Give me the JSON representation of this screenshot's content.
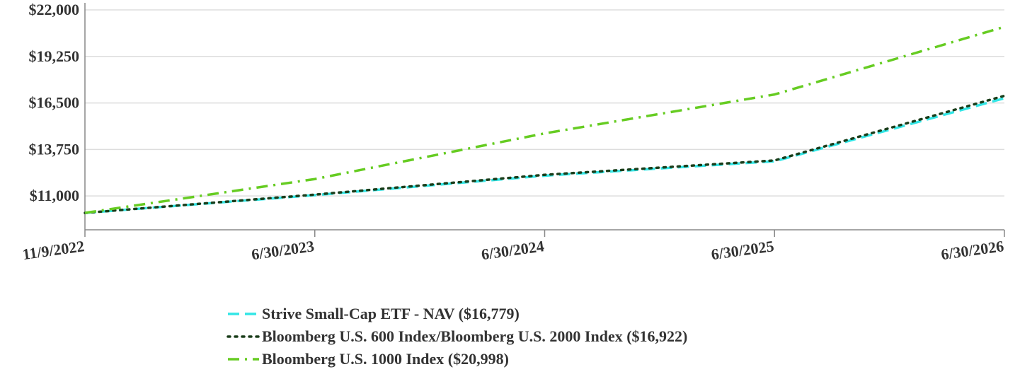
{
  "chart_data": {
    "type": "line",
    "title": "",
    "xlabel": "",
    "ylabel": "",
    "ylim": [
      9000,
      22000
    ],
    "y_ticks": [
      11000,
      13750,
      16500,
      19250,
      22000
    ],
    "y_tick_labels": [
      "$11,000",
      "$13,750",
      "$16,500",
      "$19,250",
      "$22,000"
    ],
    "x": [
      "11/9/2022",
      "6/30/2023",
      "6/30/2024",
      "6/30/2025",
      "6/30/2026"
    ],
    "x_tick_labels": [
      "11/9/2022",
      "6/30/2023",
      "6/30/2024",
      "6/30/2025",
      "6/30/2026"
    ],
    "grid": true,
    "legend_position": "bottom",
    "series": [
      {
        "name": "Strive Small-Cap ETF - NAV ($16,779)",
        "color": "#33e6e6",
        "style": "dashed",
        "values": [
          10000,
          11050,
          12200,
          13050,
          16779
        ]
      },
      {
        "name": "Bloomberg U.S. 600 Index/Bloomberg U.S. 2000 Index ($16,922)",
        "color": "#1a3d1a",
        "style": "dotted",
        "values": [
          10000,
          11080,
          12250,
          13100,
          16922
        ]
      },
      {
        "name": "Bloomberg U.S. 1000 Index ($20,998)",
        "color": "#66cc22",
        "style": "dash-dot",
        "values": [
          10000,
          12000,
          14700,
          17000,
          20998
        ]
      }
    ]
  }
}
